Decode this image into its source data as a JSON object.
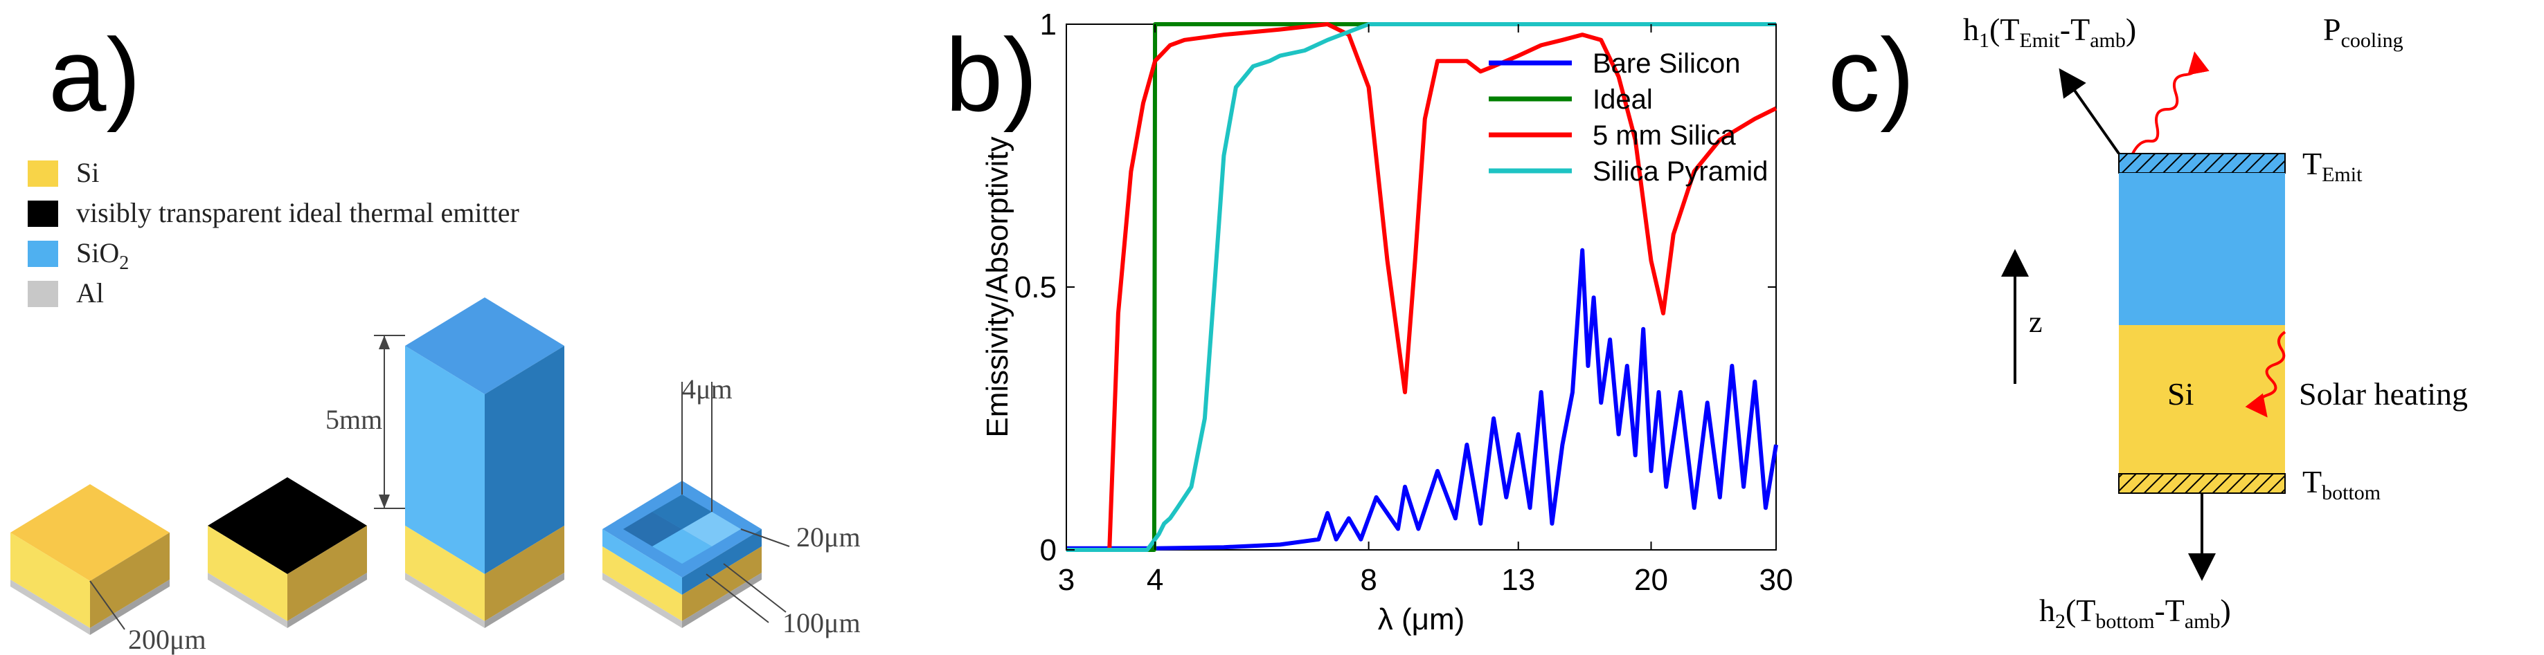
{
  "panel_a": {
    "label": "a)",
    "legend": [
      {
        "label": "Si",
        "sub": "",
        "color": "#F8D448"
      },
      {
        "label": "visibly transparent ideal thermal emitter",
        "sub": "",
        "color": "#000000"
      },
      {
        "label": "SiO",
        "sub": "2",
        "color": "#4FB0F0"
      },
      {
        "label": "Al",
        "sub": "",
        "color": "#C8C8C8"
      }
    ],
    "dims": {
      "thickness": "200μm",
      "height": "5mm",
      "pyramid_size": "4μm",
      "pyramid_depth": "20μm",
      "pitch": "100μm"
    }
  },
  "panel_b": {
    "label": "b)",
    "chart_data": {
      "type": "line",
      "xlabel": "λ (μm)",
      "ylabel": "Emissivity/Absorptivity",
      "x_scale": "log",
      "xlim": [
        3,
        30
      ],
      "ylim": [
        0,
        1
      ],
      "xticks": [
        3,
        4,
        8,
        13,
        20,
        30
      ],
      "xtick_labels": [
        "3",
        "4",
        "8",
        "13",
        "20",
        "30"
      ],
      "yticks": [
        0,
        0.5,
        1
      ],
      "ytick_labels": [
        "0",
        "0.5",
        "1"
      ],
      "legend_position": "top-right",
      "series": [
        {
          "name": "Bare Silicon",
          "color": "#0000FF",
          "x": [
            3,
            4,
            5,
            6,
            6.8,
            7.0,
            7.2,
            7.5,
            7.8,
            8.2,
            8.8,
            9.0,
            9.4,
            10.0,
            10.6,
            11.0,
            11.5,
            12.0,
            12.5,
            13.0,
            13.5,
            14.0,
            14.5,
            15.0,
            15.5,
            16.0,
            16.3,
            16.6,
            17.0,
            17.5,
            18.0,
            18.5,
            19.0,
            19.5,
            20.0,
            20.5,
            21.0,
            22.0,
            23.0,
            24.0,
            25.0,
            26.0,
            27.0,
            28.0,
            29.0,
            30.0
          ],
          "y": [
            0.003,
            0.003,
            0.005,
            0.01,
            0.02,
            0.07,
            0.02,
            0.06,
            0.02,
            0.1,
            0.04,
            0.12,
            0.04,
            0.15,
            0.06,
            0.2,
            0.05,
            0.25,
            0.1,
            0.22,
            0.08,
            0.3,
            0.05,
            0.2,
            0.3,
            0.57,
            0.35,
            0.48,
            0.28,
            0.4,
            0.22,
            0.35,
            0.18,
            0.42,
            0.15,
            0.3,
            0.12,
            0.3,
            0.08,
            0.28,
            0.1,
            0.35,
            0.12,
            0.32,
            0.08,
            0.2
          ]
        },
        {
          "name": "Ideal",
          "color": "#008000",
          "x": [
            3,
            3.99,
            4.0,
            7.0,
            30
          ],
          "y": [
            0,
            0,
            1,
            1,
            1
          ]
        },
        {
          "name": "5 mm Silica",
          "color": "#FF0000",
          "x": [
            3,
            3.45,
            3.55,
            3.7,
            3.85,
            4.0,
            4.2,
            4.4,
            5.0,
            6.0,
            7.0,
            7.5,
            8.0,
            8.5,
            9.0,
            9.3,
            9.6,
            10.0,
            11.0,
            11.5,
            12.0,
            13.0,
            14.0,
            15.0,
            16.0,
            17.0,
            18.0,
            19.0,
            20.0,
            20.8,
            21.5,
            23.0,
            25.0,
            28.0,
            30.0
          ],
          "y": [
            0,
            0,
            0.45,
            0.72,
            0.85,
            0.93,
            0.96,
            0.97,
            0.98,
            0.99,
            1.0,
            0.98,
            0.88,
            0.55,
            0.3,
            0.55,
            0.82,
            0.93,
            0.93,
            0.91,
            0.92,
            0.94,
            0.96,
            0.97,
            0.98,
            0.97,
            0.9,
            0.78,
            0.55,
            0.45,
            0.6,
            0.72,
            0.78,
            0.82,
            0.84
          ]
        },
        {
          "name": "Silica Pyramid",
          "color": "#1EC3C3",
          "x": [
            3,
            3.9,
            4.05,
            4.12,
            4.2,
            4.3,
            4.5,
            4.7,
            4.85,
            5.0,
            5.2,
            5.5,
            5.8,
            6.0,
            6.5,
            7.0,
            8.0,
            30
          ],
          "y": [
            0,
            0,
            0.03,
            0.05,
            0.06,
            0.08,
            0.12,
            0.25,
            0.5,
            0.75,
            0.88,
            0.92,
            0.93,
            0.94,
            0.95,
            0.97,
            1.0,
            1.0
          ]
        }
      ]
    }
  },
  "panel_c": {
    "label": "c)",
    "h1": "h",
    "h1_sub": "1",
    "h1_expr": "(T",
    "h1_emit_sub": "Emit",
    "h1_mid": "-T",
    "h1_amb_sub": "amb",
    "h1_close": ")",
    "p_label": "P",
    "p_sub": "cooling",
    "t_emit": "T",
    "t_emit_sub": "Emit",
    "z_label": "z",
    "si_label": "Si",
    "solar_label": "Solar heating",
    "t_bottom": "T",
    "t_bottom_sub": "bottom",
    "h2": "h",
    "h2_sub": "2",
    "h2_expr": "(T",
    "h2_bottom_sub": "bottom",
    "h2_mid": "-T",
    "h2_amb_sub": "amb",
    "h2_close": ")",
    "colors": {
      "sio2": "#4FB0F0",
      "si": "#F8D448",
      "emitter_hatch": "#4FB0F0",
      "bottom_hatch": "#F8D448"
    }
  }
}
